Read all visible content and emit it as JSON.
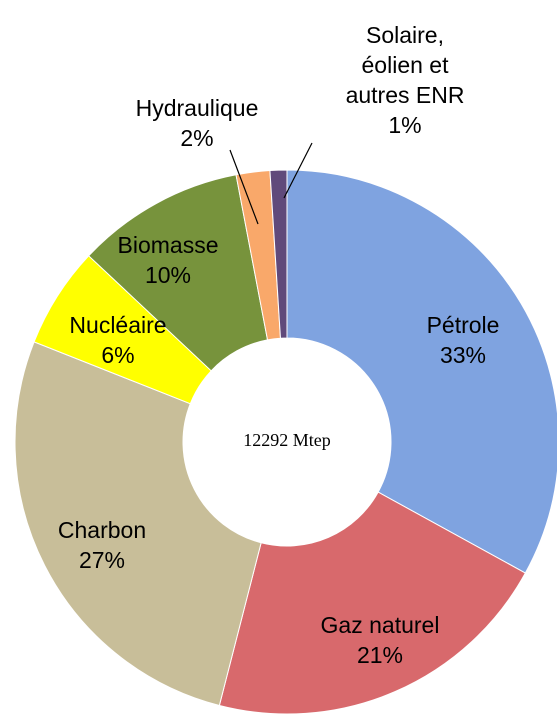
{
  "chart_data": {
    "type": "pie",
    "categories": [
      "Pétrole",
      "Gaz naturel",
      "Charbon",
      "Nucléaire",
      "Biomasse",
      "Hydraulique",
      "Solaire, éolien et autres ENR"
    ],
    "values": [
      33,
      21,
      27,
      6,
      10,
      2,
      1
    ],
    "value_labels": [
      "33%",
      "21%",
      "27%",
      "6%",
      "10%",
      "2%",
      "1%"
    ],
    "colors": [
      "#7fa3e0",
      "#d8696c",
      "#c8be99",
      "#ffff00",
      "#77933c",
      "#f9a86a",
      "#604a7b"
    ],
    "annotation": "12292 Mtep"
  }
}
